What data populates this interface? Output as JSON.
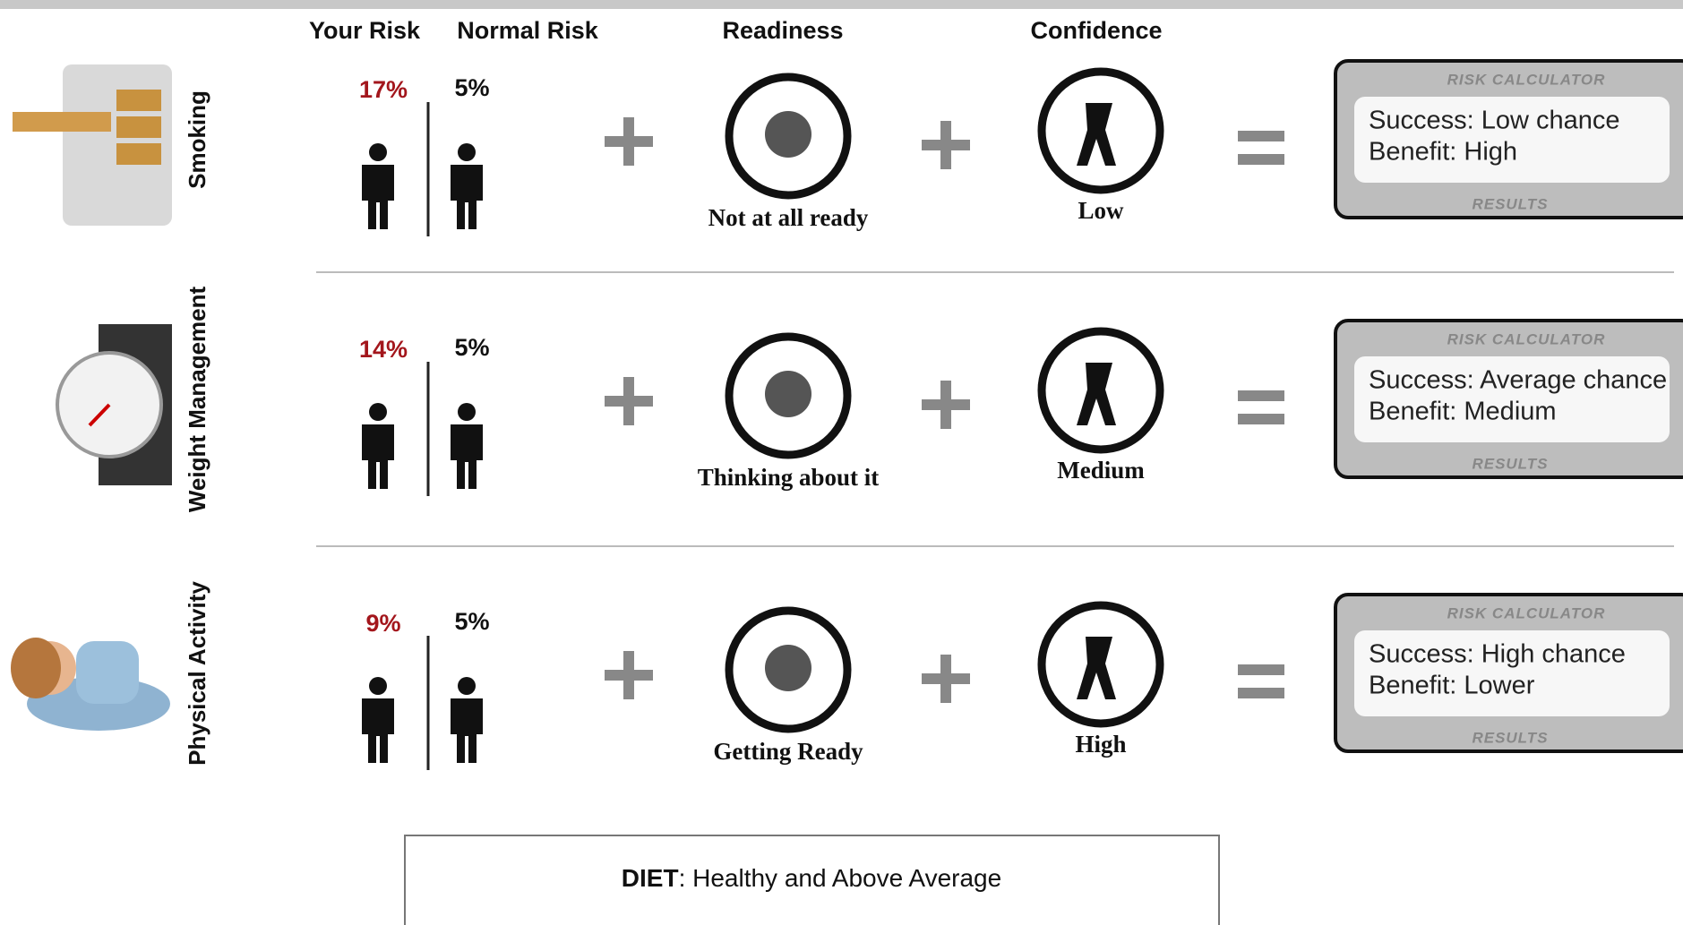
{
  "header": {
    "your_risk": "Your Risk",
    "normal_risk": "Normal Risk",
    "readiness": "Readiness",
    "confidence": "Confidence"
  },
  "rows": [
    {
      "label": "Smoking",
      "your_risk": "17%",
      "normal_risk": "5%",
      "readiness": "Not at all ready",
      "confidence": "Low",
      "result": {
        "title": "RISK CALCULATOR",
        "success": "Success: Low chance",
        "benefit": "Benefit: High",
        "footer": "RESULTS"
      }
    },
    {
      "label": "Weight Management",
      "your_risk": "14%",
      "normal_risk": "5%",
      "readiness": "Thinking about it",
      "confidence": "Medium",
      "result": {
        "title": "RISK CALCULATOR",
        "success": "Success: Average chance",
        "benefit": "Benefit: Medium",
        "footer": "RESULTS"
      }
    },
    {
      "label": "Physical Activity",
      "your_risk": "9%",
      "normal_risk": "5%",
      "readiness": "Getting Ready",
      "confidence": "High",
      "result": {
        "title": "RISK CALCULATOR",
        "success": "Success: High chance",
        "benefit": "Benefit: Lower",
        "footer": "RESULTS"
      }
    }
  ],
  "diet": {
    "label": "DIET",
    "text": ": Healthy and Above Average"
  }
}
